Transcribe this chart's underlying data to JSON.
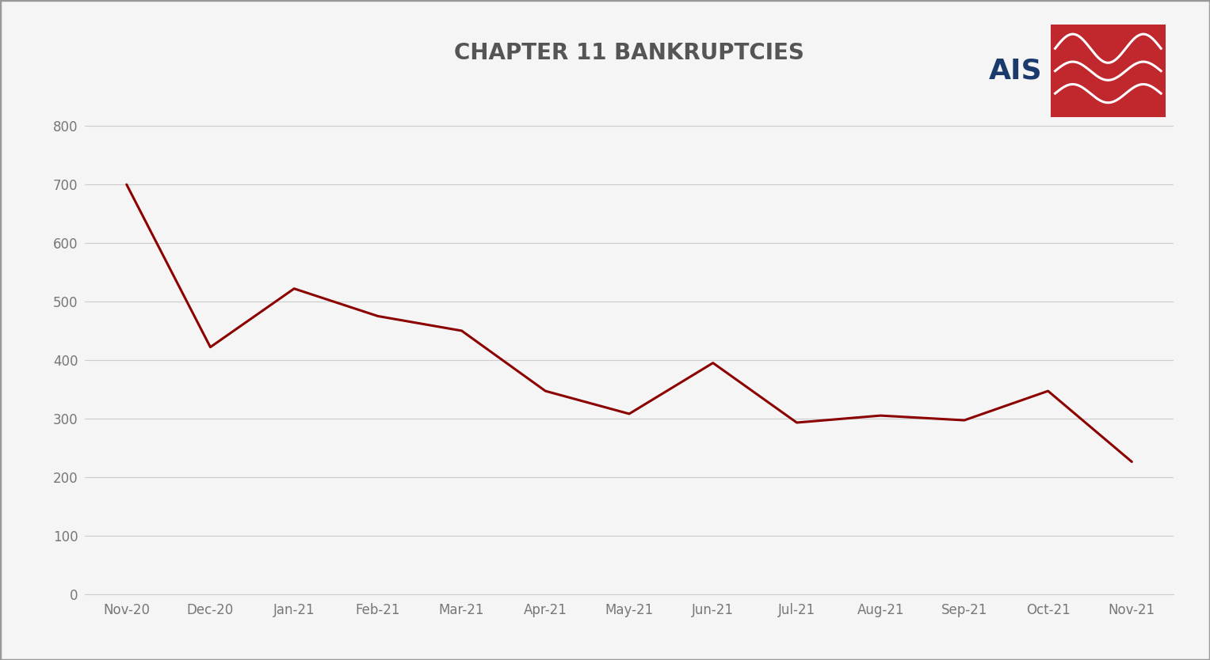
{
  "title": "CHAPTER 11 BANKRUPTCIES",
  "categories": [
    "Nov-20",
    "Dec-20",
    "Jan-21",
    "Feb-21",
    "Mar-21",
    "Apr-21",
    "May-21",
    "Jun-21",
    "Jul-21",
    "Aug-21",
    "Sep-21",
    "Oct-21",
    "Nov-21"
  ],
  "values": [
    700,
    422,
    522,
    475,
    450,
    347,
    308,
    395,
    293,
    305,
    297,
    347,
    226
  ],
  "line_color": "#8B0000",
  "line_width": 2.2,
  "background_color": "#F5F5F5",
  "plot_bg_color": "#F5F5F5",
  "grid_color": "#CCCCCC",
  "border_color": "#999999",
  "yticks": [
    0,
    100,
    200,
    300,
    400,
    500,
    600,
    700,
    800
  ],
  "ylim": [
    0,
    880
  ],
  "title_fontsize": 20,
  "tick_fontsize": 12,
  "title_fontweight": "bold",
  "title_color": "#555555",
  "tick_color": "#777777",
  "logo_ais_color": "#1a3a6b",
  "logo_red_color": "#C0282D"
}
